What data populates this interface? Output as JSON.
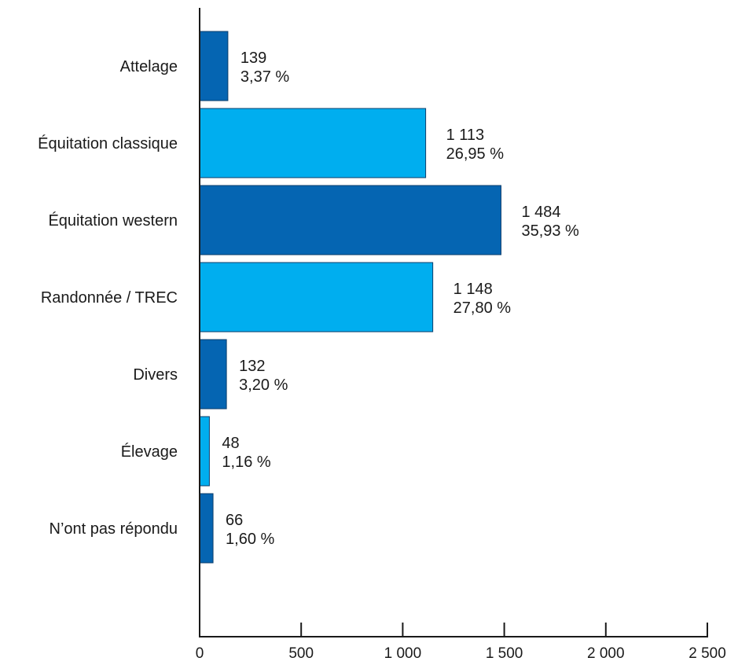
{
  "chart_data": {
    "type": "bar",
    "orientation": "horizontal",
    "categories": [
      "Attelage",
      "Équitation classique",
      "Équitation western",
      "Randonnée / TREC",
      "Divers",
      "Élevage",
      "N’ont pas répondu"
    ],
    "values": [
      139,
      1113,
      1484,
      1148,
      132,
      48,
      66
    ],
    "value_labels": [
      "139",
      "1 113",
      "1 484",
      "1 148",
      "132",
      "48",
      "66"
    ],
    "percent_labels": [
      "3,37 %",
      "26,95 %",
      "35,93 %",
      "27,80 %",
      "3,20 %",
      "1,16 %",
      "1,60 %"
    ],
    "bar_colors": [
      "#0565b2",
      "#00aeef",
      "#0565b2",
      "#00aeef",
      "#0565b2",
      "#00aeef",
      "#0565b2"
    ],
    "xlim": [
      0,
      2500
    ],
    "xticks": [
      0,
      500,
      1000,
      1500,
      2000,
      2500
    ],
    "xtick_labels": [
      "0",
      "500",
      "1 000",
      "1 500",
      "2 000",
      "2 500"
    ],
    "title": "",
    "xlabel": "",
    "ylabel": "",
    "grid": false,
    "legend": "none"
  }
}
